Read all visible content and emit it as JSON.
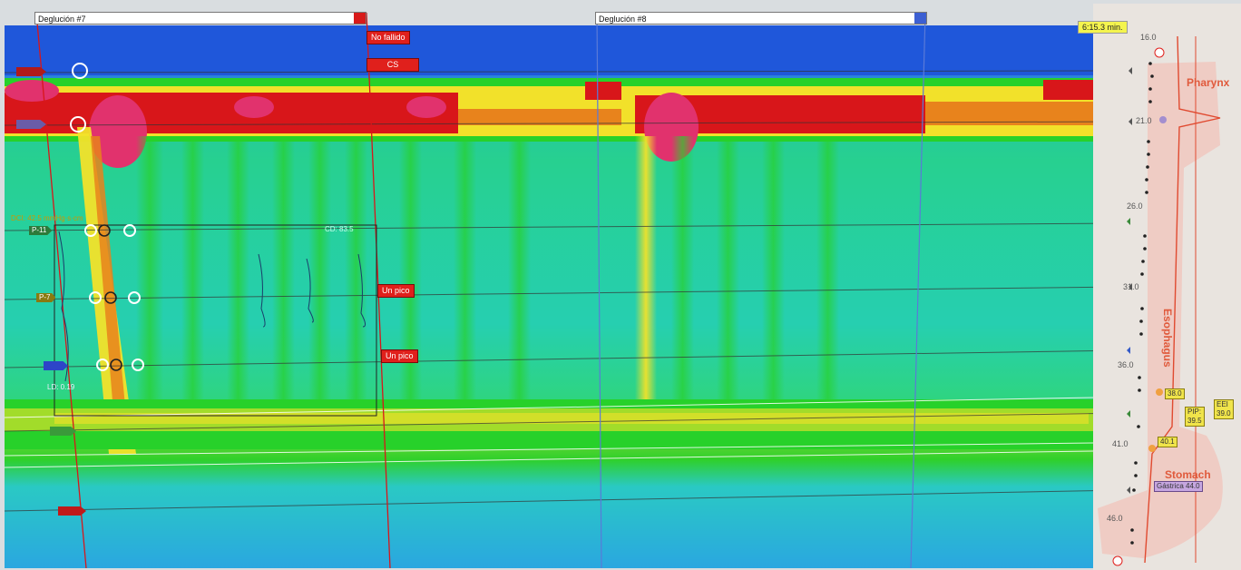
{
  "swallows": [
    {
      "label": "Deglución #7"
    },
    {
      "label": "Deglución #8"
    }
  ],
  "event_labels": {
    "no_failed": "No fallido",
    "cs": "CS",
    "single_peak_1": "Un pico",
    "single_peak_2": "Un pico"
  },
  "time_readout": "6:15.3 min.",
  "readouts": {
    "dci": "DCI: 42.5 mmHg·s·cm",
    "cd": "CD: 83.5",
    "ld": "LD: 0.19"
  },
  "channel_markers": [
    "P-11",
    "P-7",
    "P-3"
  ],
  "depth_scale": [
    "16.0",
    "21.0",
    "26.0",
    "31.0",
    "36.0",
    "41.0",
    "46.0"
  ],
  "anatomy": {
    "pharynx": "Pharynx",
    "esophagus": "Esophagus",
    "stomach": "Stomach"
  },
  "anatomy_tags": {
    "tag_38": "38.0",
    "pip": "PIP:\n39.5",
    "eei": "EEI\n39.0",
    "tag_40": "40.1",
    "gastric": "Gástrica 44.0"
  },
  "colors": {
    "pressure_low": "#1b4fd6",
    "pressure_mid": "#22c7c7",
    "pressure_green": "#27d12a",
    "pressure_yellow": "#f2e12a",
    "pressure_red": "#d8161a",
    "pressure_peak": "#e1326d"
  }
}
